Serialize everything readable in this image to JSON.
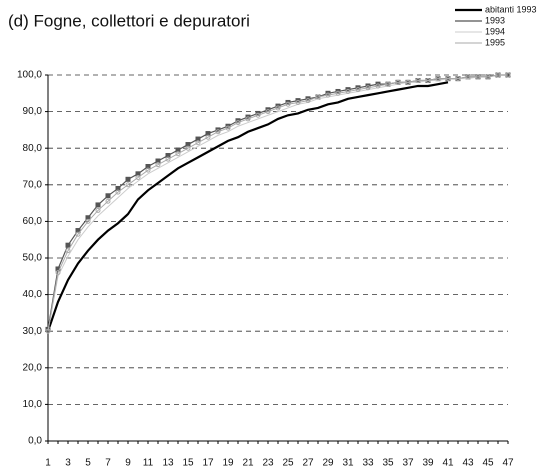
{
  "chart_data": {
    "type": "line",
    "title": "(d) Fogne, collettori e depuratori",
    "categories": [
      1,
      null,
      3,
      null,
      5,
      null,
      7,
      null,
      9,
      null,
      11,
      null,
      13,
      null,
      15,
      null,
      17,
      null,
      19,
      null,
      21,
      null,
      23,
      null,
      25,
      null,
      27,
      null,
      29,
      null,
      31,
      null,
      33,
      null,
      35,
      null,
      37,
      null,
      39,
      null,
      41,
      null,
      43,
      null,
      45,
      null,
      47
    ],
    "ylim": [
      0,
      100
    ],
    "yticks": [
      {
        "value": 0,
        "label": "0,0"
      },
      {
        "value": 10,
        "label": "10,0"
      },
      {
        "value": 20,
        "label": "20,0"
      },
      {
        "value": 30,
        "label": "30,0"
      },
      {
        "value": 40,
        "label": "40,0"
      },
      {
        "value": 50,
        "label": "50,0"
      },
      {
        "value": 60,
        "label": "60,0"
      },
      {
        "value": 70,
        "label": "70,0"
      },
      {
        "value": 80,
        "label": "80,0"
      },
      {
        "value": 90,
        "label": "90,0"
      },
      {
        "value": 100,
        "label": "100,0"
      }
    ],
    "grid": true,
    "series": [
      {
        "name": "abitanti 1993",
        "color": "#000000",
        "values": [
          30,
          38,
          44,
          48.5,
          52,
          55,
          57.5,
          59.5,
          62,
          66,
          68.5,
          70.5,
          72.5,
          74.5,
          76,
          77.5,
          79,
          80.5,
          82,
          83,
          84.5,
          85.5,
          86.5,
          88,
          89,
          89.5,
          90.5,
          91,
          92,
          92.5,
          93.5,
          94,
          94.5,
          95,
          95.5,
          96,
          96.5,
          97,
          97,
          97.5,
          98,
          null,
          null,
          null,
          null,
          null,
          null
        ]
      },
      {
        "name": "1993",
        "color": "#555555",
        "values": [
          30.5,
          47,
          53.5,
          57.5,
          61,
          64.5,
          67,
          69,
          71.5,
          73,
          75,
          76.5,
          78,
          79.5,
          81,
          82.5,
          84,
          85,
          86,
          87.5,
          88.5,
          89.5,
          90.5,
          91.5,
          92.5,
          93,
          93.5,
          94,
          95,
          95.5,
          96,
          96.5,
          97,
          97.5,
          97.5,
          98,
          98,
          98.5,
          98.5,
          99,
          99,
          99,
          99.5,
          99.5,
          99.5,
          100,
          100
        ]
      },
      {
        "name": "1994",
        "color": "#cccccc",
        "values": [
          30,
          45,
          50.5,
          55,
          58.5,
          61.5,
          64,
          66.5,
          69,
          71,
          73,
          74.5,
          76,
          77.5,
          79,
          80.5,
          82,
          83.5,
          84.5,
          86,
          87,
          88,
          89,
          90,
          91,
          92,
          92.5,
          93.5,
          94,
          94.5,
          95,
          95.5,
          96,
          96.5,
          97,
          97.5,
          98,
          98,
          98.5,
          98.5,
          99,
          99,
          99,
          99.5,
          99.5,
          100,
          100
        ]
      },
      {
        "name": "1995",
        "color": "#aaaaaa",
        "values": [
          30,
          46,
          52,
          56.5,
          60,
          63,
          65.5,
          68,
          70,
          72,
          74,
          75.5,
          77,
          78.5,
          80,
          81.5,
          83,
          84.5,
          85.5,
          87,
          88,
          89,
          90,
          91,
          92,
          92.5,
          93,
          94,
          94.5,
          95,
          95.5,
          96,
          96.5,
          97,
          97.5,
          98,
          98,
          98.5,
          98.5,
          99,
          99,
          99,
          99.5,
          99.5,
          99.5,
          100,
          100
        ]
      }
    ]
  }
}
